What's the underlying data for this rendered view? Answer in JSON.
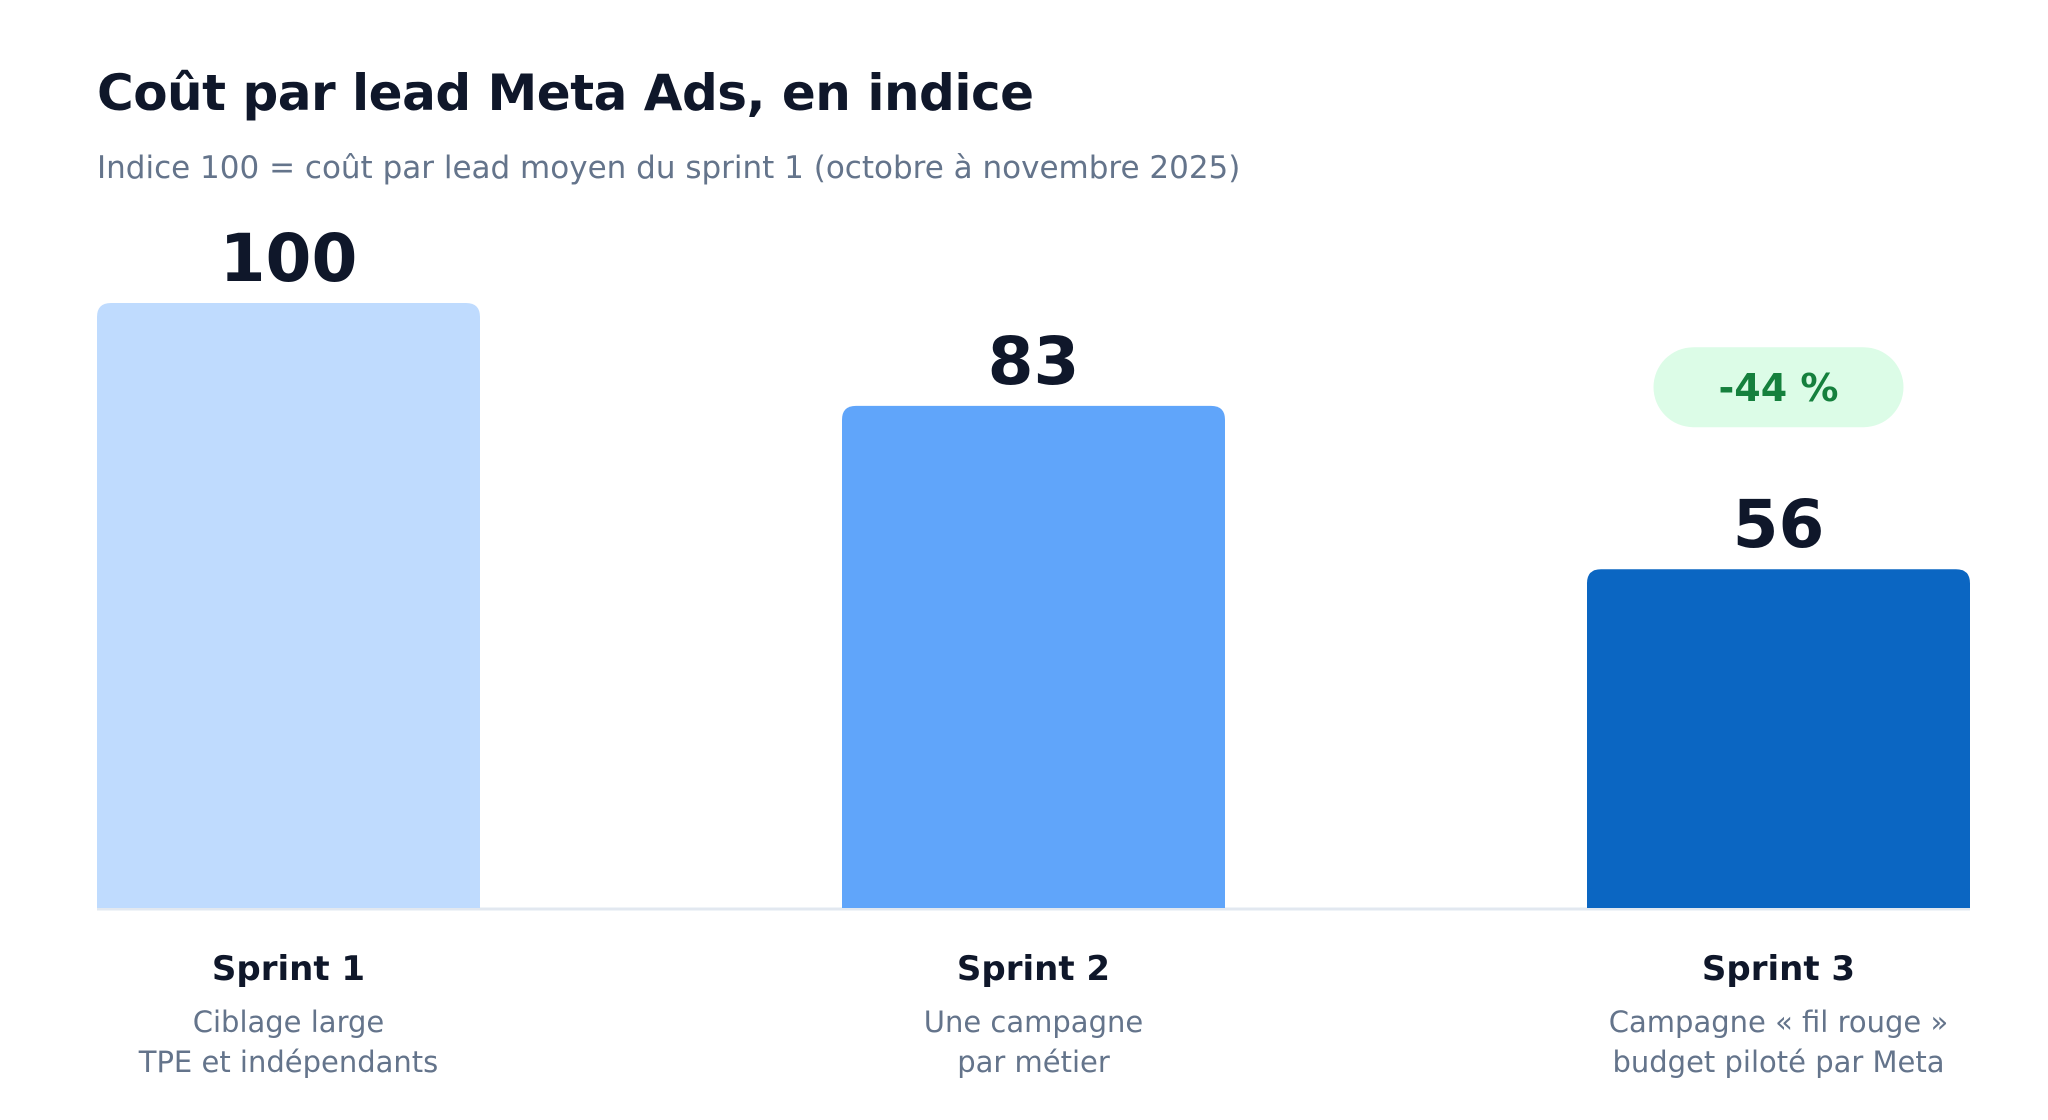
{
  "chart_data": {
    "type": "bar",
    "title": "Coût par lead Meta Ads, en indice",
    "subtitle": "Indice 100 = coût par lead moyen du sprint 1 (octobre à novembre 2025)",
    "categories": [
      "Sprint 1",
      "Sprint 2",
      "Sprint 3"
    ],
    "descriptions": [
      [
        "Ciblage large",
        "TPE et indépendants"
      ],
      [
        "Une campagne",
        "par métier"
      ],
      [
        "Campagne « fil rouge »",
        "budget piloté par Meta"
      ]
    ],
    "values": [
      100,
      83,
      56
    ],
    "value_labels": [
      "100",
      "83",
      "56"
    ],
    "ylim": [
      0,
      100
    ],
    "grid": false,
    "colors": [
      "#bfdbfe",
      "#60a5fa",
      "#0b66c2"
    ],
    "baseline_color": "#e2e8f0",
    "annotation": {
      "text": "-44 %",
      "category": "Sprint 3",
      "text_color": "#15803d",
      "background": "#dcfce7"
    }
  }
}
